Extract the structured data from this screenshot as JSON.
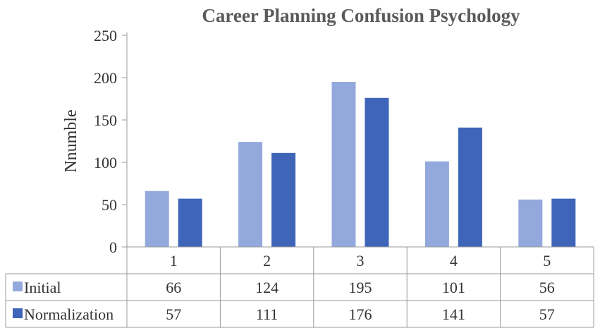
{
  "chart_data": {
    "type": "bar",
    "title": "Career Planning Confusion Psychology",
    "xlabel": "",
    "ylabel": "Nnumble",
    "ylim": [
      0,
      250
    ],
    "yticks": [
      0,
      50,
      100,
      150,
      200,
      250
    ],
    "categories": [
      "1",
      "2",
      "3",
      "4",
      "5"
    ],
    "series": [
      {
        "name": "Initial",
        "values": [
          66,
          124,
          195,
          101,
          56
        ],
        "color": "#93a9dd"
      },
      {
        "name": "Normalization",
        "values": [
          57,
          111,
          176,
          141,
          57
        ],
        "color": "#3e65b8"
      }
    ],
    "grid": false,
    "legend": "data-table-left"
  }
}
